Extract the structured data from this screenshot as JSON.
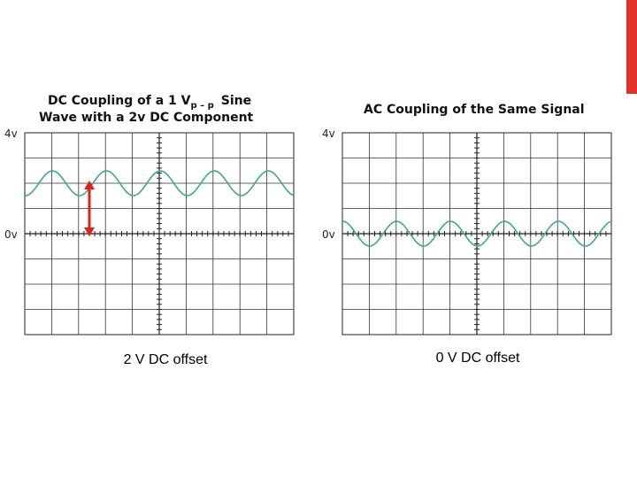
{
  "left_panel": {
    "title_start": "DC Coupling  of a 1 V",
    "title_subscript": "p – p",
    "title_end": "Sine",
    "title_line2": "Wave with a 2v DC Component",
    "top_label": "4v",
    "zero_label": "0v",
    "caption": "2 V DC offset"
  },
  "right_panel": {
    "title": "AC Coupling  of  the  Same  Signal",
    "top_label": "4v",
    "zero_label": "0v",
    "caption": "0 V DC offset"
  }
}
